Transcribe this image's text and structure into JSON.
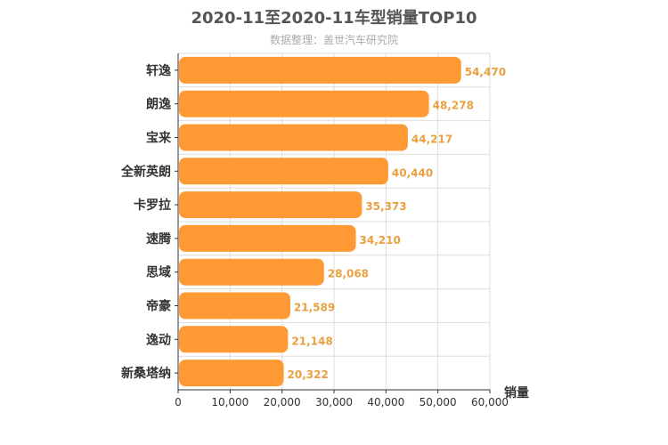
{
  "chart_data": {
    "type": "bar",
    "orientation": "horizontal",
    "title": "2020-11至2020-11车型销量TOP10",
    "subtitle": "数据整理：盖世汽车研究院",
    "xlabel": "销量",
    "categories": [
      "轩逸",
      "朗逸",
      "宝来",
      "全新英朗",
      "卡罗拉",
      "速腾",
      "思域",
      "帝豪",
      "逸动",
      "新桑塔纳"
    ],
    "values": [
      54470,
      48278,
      44217,
      40440,
      35373,
      34210,
      28068,
      21589,
      21148,
      20322
    ],
    "value_labels": [
      "54,470",
      "48,278",
      "44,217",
      "40,440",
      "35,373",
      "34,210",
      "28,068",
      "21,589",
      "21,148",
      "20,322"
    ],
    "xlim": [
      0,
      60000
    ],
    "xticks": [
      "0",
      "10,000",
      "20,000",
      "30,000",
      "40,000",
      "50,000",
      "60,000"
    ],
    "grid": true,
    "bar_color": "#ff9933",
    "label_color": "#e8a040"
  }
}
